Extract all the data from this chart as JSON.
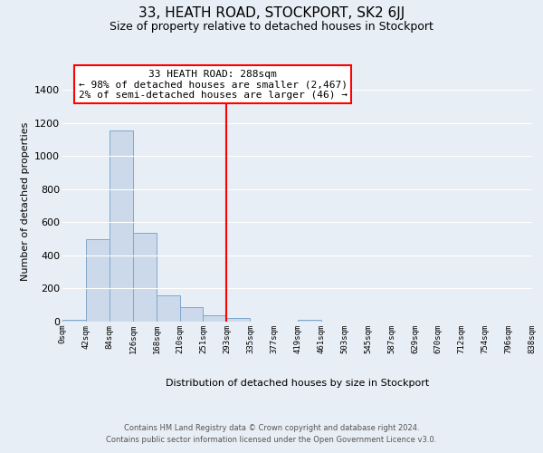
{
  "title": "33, HEATH ROAD, STOCKPORT, SK2 6JJ",
  "subtitle": "Size of property relative to detached houses in Stockport",
  "xlabel": "Distribution of detached houses by size in Stockport",
  "ylabel": "Number of detached properties",
  "bar_edges": [
    0,
    42,
    84,
    126,
    168,
    210,
    251,
    293,
    335,
    377,
    419,
    461,
    503,
    545,
    587,
    629,
    670,
    712,
    754,
    796,
    838
  ],
  "bar_heights": [
    10,
    500,
    1155,
    535,
    160,
    85,
    38,
    20,
    0,
    0,
    10,
    0,
    0,
    0,
    0,
    0,
    0,
    0,
    0,
    0
  ],
  "bar_color": "#ccd9eb",
  "bar_edge_color": "#7fa8cd",
  "vline_x": 293,
  "vline_color": "red",
  "annotation_title": "33 HEATH ROAD: 288sqm",
  "annotation_line1": "← 98% of detached houses are smaller (2,467)",
  "annotation_line2": "2% of semi-detached houses are larger (46) →",
  "annotation_box_color": "white",
  "annotation_box_edge": "red",
  "tick_labels": [
    "0sqm",
    "42sqm",
    "84sqm",
    "126sqm",
    "168sqm",
    "210sqm",
    "251sqm",
    "293sqm",
    "335sqm",
    "377sqm",
    "419sqm",
    "461sqm",
    "503sqm",
    "545sqm",
    "587sqm",
    "629sqm",
    "670sqm",
    "712sqm",
    "754sqm",
    "796sqm",
    "838sqm"
  ],
  "yticks": [
    0,
    200,
    400,
    600,
    800,
    1000,
    1200,
    1400
  ],
  "ylim": [
    0,
    1450
  ],
  "xlim": [
    0,
    838
  ],
  "footer_line1": "Contains HM Land Registry data © Crown copyright and database right 2024.",
  "footer_line2": "Contains public sector information licensed under the Open Government Licence v3.0.",
  "bg_color": "#e8eef5",
  "plot_bg_color": "#e8eef5",
  "grid_color": "white",
  "title_fontsize": 11,
  "subtitle_fontsize": 9,
  "ylabel_fontsize": 8,
  "xlabel_fontsize": 8,
  "tick_fontsize": 6.5,
  "footer_fontsize": 6.0,
  "ann_fontsize": 8
}
